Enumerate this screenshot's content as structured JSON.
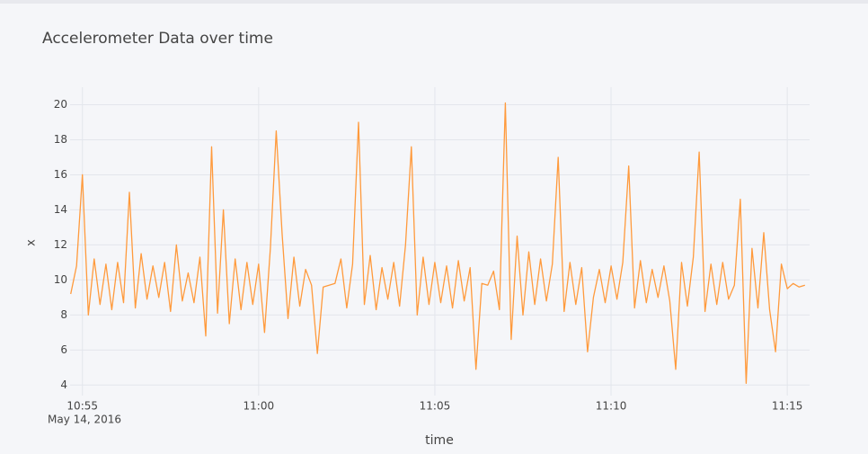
{
  "chart_data": {
    "type": "line",
    "title": "Accelerometer Data over time",
    "x_label": "time",
    "y_label": "x",
    "date_label": "May 14, 2016",
    "x": [
      "10:54:40",
      "10:54:50",
      "10:55:00",
      "10:55:10",
      "10:55:20",
      "10:55:30",
      "10:55:40",
      "10:55:50",
      "10:56:00",
      "10:56:10",
      "10:56:20",
      "10:56:30",
      "10:56:40",
      "10:56:50",
      "10:57:00",
      "10:57:10",
      "10:57:20",
      "10:57:30",
      "10:57:40",
      "10:57:50",
      "10:58:00",
      "10:58:10",
      "10:58:20",
      "10:58:30",
      "10:58:40",
      "10:58:50",
      "10:59:00",
      "10:59:10",
      "10:59:20",
      "10:59:30",
      "10:59:40",
      "10:59:50",
      "11:00:00",
      "11:00:10",
      "11:00:20",
      "11:00:30",
      "11:00:40",
      "11:00:50",
      "11:01:00",
      "11:01:10",
      "11:01:20",
      "11:01:30",
      "11:01:40",
      "11:01:50",
      "11:02:00",
      "11:02:10",
      "11:02:20",
      "11:02:30",
      "11:02:40",
      "11:02:50",
      "11:03:00",
      "11:03:10",
      "11:03:20",
      "11:03:30",
      "11:03:40",
      "11:03:50",
      "11:04:00",
      "11:04:10",
      "11:04:20",
      "11:04:30",
      "11:04:40",
      "11:04:50",
      "11:05:00",
      "11:05:10",
      "11:05:20",
      "11:05:30",
      "11:05:40",
      "11:05:50",
      "11:06:00",
      "11:06:10",
      "11:06:20",
      "11:06:30",
      "11:06:40",
      "11:06:50",
      "11:07:00",
      "11:07:10",
      "11:07:20",
      "11:07:30",
      "11:07:40",
      "11:07:50",
      "11:08:00",
      "11:08:10",
      "11:08:20",
      "11:08:30",
      "11:08:40",
      "11:08:50",
      "11:09:00",
      "11:09:10",
      "11:09:20",
      "11:09:30",
      "11:09:40",
      "11:09:50",
      "11:10:00",
      "11:10:10",
      "11:10:20",
      "11:10:30",
      "11:10:40",
      "11:10:50",
      "11:11:00",
      "11:11:10",
      "11:11:20",
      "11:11:30",
      "11:11:40",
      "11:11:50",
      "11:12:00",
      "11:12:10",
      "11:12:20",
      "11:12:30",
      "11:12:40",
      "11:12:50",
      "11:13:00",
      "11:13:10",
      "11:13:20",
      "11:13:30",
      "11:13:40",
      "11:13:50",
      "11:14:00",
      "11:14:10",
      "11:14:20",
      "11:14:30",
      "11:14:40",
      "11:14:50",
      "11:15:00",
      "11:15:10",
      "11:15:20",
      "11:15:30"
    ],
    "series": [
      {
        "name": "x",
        "color": "#ff9a3c",
        "values": [
          9.2,
          10.8,
          16.0,
          8.0,
          11.2,
          8.6,
          10.9,
          8.3,
          11.0,
          8.7,
          15.0,
          8.4,
          11.5,
          8.9,
          10.8,
          9.0,
          11.0,
          8.2,
          12.0,
          8.8,
          10.4,
          8.7,
          11.3,
          6.8,
          17.6,
          8.1,
          14.0,
          7.5,
          11.2,
          8.3,
          11.0,
          8.6,
          10.9,
          7.0,
          11.8,
          18.5,
          12.6,
          7.8,
          11.3,
          8.5,
          10.6,
          9.7,
          5.8,
          9.6,
          9.7,
          9.8,
          11.2,
          8.4,
          10.9,
          19.0,
          8.6,
          11.4,
          8.3,
          10.7,
          8.9,
          11.0,
          8.5,
          12.0,
          17.6,
          8.0,
          11.3,
          8.6,
          11.0,
          8.7,
          10.8,
          8.4,
          11.1,
          8.8,
          10.7,
          4.9,
          9.8,
          9.7,
          10.5,
          8.3,
          20.1,
          6.6,
          12.5,
          8.0,
          11.6,
          8.6,
          11.2,
          8.8,
          10.9,
          17.0,
          8.2,
          11.0,
          8.6,
          10.7,
          5.9,
          9.0,
          10.6,
          8.7,
          10.8,
          8.9,
          11.0,
          16.5,
          8.4,
          11.1,
          8.7,
          10.6,
          9.0,
          10.8,
          8.8,
          4.9,
          11.0,
          8.5,
          11.3,
          17.3,
          8.2,
          10.9,
          8.6,
          11.0,
          8.9,
          9.7,
          14.6,
          4.1,
          11.8,
          8.4,
          12.7,
          8.3,
          5.9,
          10.9,
          9.5,
          9.8,
          9.6,
          9.7
        ]
      }
    ],
    "xlim": [
      "10:54:39",
      "11:15:38"
    ],
    "xticks": [
      {
        "value": "10:55:00",
        "label": "10:55"
      },
      {
        "value": "11:00:00",
        "label": "11:00"
      },
      {
        "value": "11:05:00",
        "label": "11:05"
      },
      {
        "value": "11:10:00",
        "label": "11:10"
      },
      {
        "value": "11:15:00",
        "label": "11:15"
      }
    ],
    "ylim": [
      3.4,
      21
    ],
    "yticks": [
      4,
      6,
      8,
      10,
      12,
      14,
      16,
      18,
      20
    ],
    "grid": true
  }
}
